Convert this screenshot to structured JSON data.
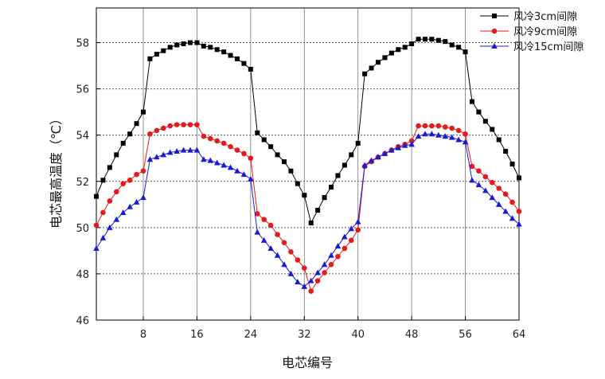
{
  "chart_data": {
    "type": "line",
    "title": "",
    "xlabel": "电芯编号",
    "ylabel": "电芯最高温度（℃）",
    "xlim": [
      1,
      64
    ],
    "ylim": [
      46,
      59.5
    ],
    "xticks": [
      8,
      16,
      24,
      32,
      40,
      48,
      56,
      64
    ],
    "yticks": [
      46,
      48,
      50,
      52,
      54,
      56,
      58
    ],
    "grid": true,
    "legend_position": "top-right",
    "x": [
      1,
      2,
      3,
      4,
      5,
      6,
      7,
      8,
      9,
      10,
      11,
      12,
      13,
      14,
      15,
      16,
      17,
      18,
      19,
      20,
      21,
      22,
      23,
      24,
      25,
      26,
      27,
      28,
      29,
      30,
      31,
      32,
      33,
      34,
      35,
      36,
      37,
      38,
      39,
      40,
      41,
      42,
      43,
      44,
      45,
      46,
      47,
      48,
      49,
      50,
      51,
      52,
      53,
      54,
      55,
      56,
      57,
      58,
      59,
      60,
      61,
      62,
      63,
      64
    ],
    "series": [
      {
        "name": "风冷3cm间隙",
        "color": "#000000",
        "marker": "square",
        "values": [
          51.35,
          52.05,
          52.6,
          53.15,
          53.65,
          54.05,
          54.5,
          55.0,
          57.3,
          57.5,
          57.65,
          57.8,
          57.9,
          57.95,
          58.0,
          58.0,
          57.85,
          57.8,
          57.7,
          57.6,
          57.45,
          57.3,
          57.1,
          56.85,
          54.1,
          53.8,
          53.5,
          53.15,
          52.85,
          52.45,
          51.9,
          51.4,
          50.2,
          50.75,
          51.3,
          51.75,
          52.25,
          52.7,
          53.15,
          53.65,
          56.65,
          56.9,
          57.15,
          57.35,
          57.55,
          57.7,
          57.8,
          57.95,
          58.15,
          58.15,
          58.15,
          58.1,
          58.05,
          57.9,
          57.8,
          57.6,
          55.45,
          55.0,
          54.6,
          54.25,
          53.8,
          53.3,
          52.75,
          52.15
        ]
      },
      {
        "name": "风冷9cm间隙",
        "color": "#e41a1c",
        "marker": "circle",
        "values": [
          50.1,
          50.65,
          51.15,
          51.55,
          51.9,
          52.05,
          52.3,
          52.45,
          54.05,
          54.2,
          54.3,
          54.4,
          54.45,
          54.45,
          54.45,
          54.45,
          53.95,
          53.85,
          53.75,
          53.65,
          53.5,
          53.35,
          53.2,
          53.0,
          50.6,
          50.35,
          50.1,
          49.7,
          49.35,
          48.95,
          48.6,
          48.25,
          47.25,
          47.7,
          48.05,
          48.4,
          48.75,
          49.1,
          49.45,
          49.9,
          52.65,
          52.85,
          53.05,
          53.2,
          53.35,
          53.5,
          53.6,
          53.75,
          54.4,
          54.4,
          54.4,
          54.4,
          54.35,
          54.3,
          54.2,
          54.05,
          52.65,
          52.45,
          52.2,
          51.95,
          51.7,
          51.45,
          51.1,
          50.7
        ]
      },
      {
        "name": "风冷15cm间隙",
        "color": "#1a1ad4",
        "marker": "triangle",
        "values": [
          49.1,
          49.55,
          50.0,
          50.35,
          50.65,
          50.9,
          51.1,
          51.3,
          52.95,
          53.05,
          53.15,
          53.25,
          53.3,
          53.35,
          53.35,
          53.35,
          52.95,
          52.9,
          52.8,
          52.7,
          52.6,
          52.45,
          52.3,
          52.1,
          49.8,
          49.45,
          49.1,
          48.8,
          48.4,
          48.0,
          47.65,
          47.45,
          47.7,
          48.05,
          48.4,
          48.8,
          49.2,
          49.6,
          49.95,
          50.25,
          52.7,
          52.9,
          53.05,
          53.2,
          53.35,
          53.45,
          53.55,
          53.6,
          53.95,
          54.05,
          54.05,
          54.0,
          53.95,
          53.9,
          53.8,
          53.7,
          52.05,
          51.85,
          51.6,
          51.3,
          51.0,
          50.7,
          50.4,
          50.15
        ]
      }
    ]
  }
}
